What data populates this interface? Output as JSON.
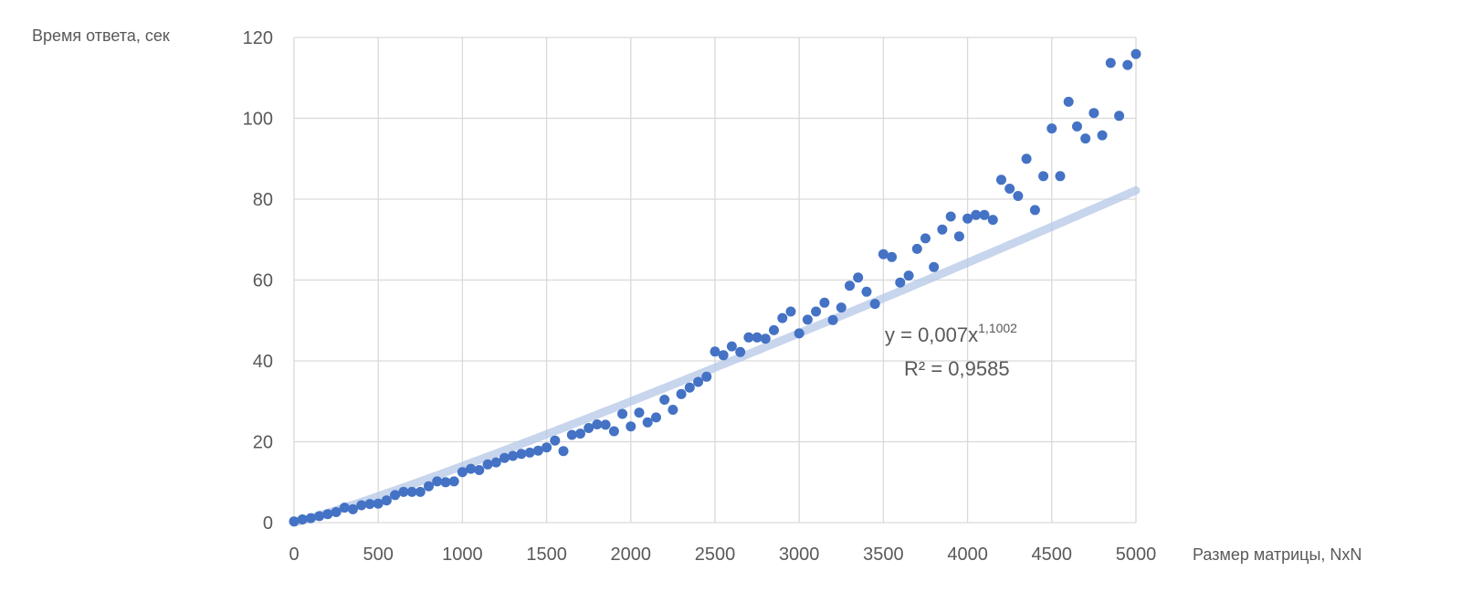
{
  "chart_data": {
    "type": "scatter",
    "ylabel": "Время ответа, сек",
    "xlabel": "Размер матрицы, NxN",
    "xlim": [
      0,
      5000
    ],
    "ylim": [
      0,
      120
    ],
    "x_ticks": [
      "0",
      "500",
      "1000",
      "1500",
      "2000",
      "2500",
      "3000",
      "3500",
      "4000",
      "4500",
      "5000"
    ],
    "y_ticks": [
      "0",
      "20",
      "40",
      "60",
      "80",
      "100",
      "120"
    ],
    "grid": true,
    "marker_color": "#4472C4",
    "trendline_color": "#b4c7e7",
    "trendline": {
      "type": "power",
      "coefficient": 0.007,
      "exponent": 1.1002,
      "equation_main": "y = 0,007x",
      "equation_exp": "1,1002",
      "r_squared_label": "R² = 0,9585"
    },
    "series": [
      {
        "points": [
          [
            0,
            0.3
          ],
          [
            50,
            0.8
          ],
          [
            100,
            1.1
          ],
          [
            150,
            1.6
          ],
          [
            200,
            2.1
          ],
          [
            250,
            2.6
          ],
          [
            300,
            3.7
          ],
          [
            350,
            3.3
          ],
          [
            400,
            4.3
          ],
          [
            450,
            4.6
          ],
          [
            500,
            4.7
          ],
          [
            550,
            5.5
          ],
          [
            600,
            6.8
          ],
          [
            650,
            7.6
          ],
          [
            700,
            7.6
          ],
          [
            750,
            7.6
          ],
          [
            800,
            9.0
          ],
          [
            850,
            10.2
          ],
          [
            900,
            10.0
          ],
          [
            950,
            10.2
          ],
          [
            1000,
            12.5
          ],
          [
            1050,
            13.3
          ],
          [
            1100,
            13.0
          ],
          [
            1150,
            14.4
          ],
          [
            1200,
            14.9
          ],
          [
            1250,
            16.0
          ],
          [
            1300,
            16.5
          ],
          [
            1350,
            17.0
          ],
          [
            1400,
            17.3
          ],
          [
            1450,
            17.8
          ],
          [
            1500,
            18.6
          ],
          [
            1550,
            20.3
          ],
          [
            1600,
            17.7
          ],
          [
            1650,
            21.7
          ],
          [
            1700,
            22.0
          ],
          [
            1750,
            23.4
          ],
          [
            1800,
            24.3
          ],
          [
            1850,
            24.2
          ],
          [
            1900,
            22.6
          ],
          [
            1950,
            26.9
          ],
          [
            2000,
            23.8
          ],
          [
            2050,
            27.2
          ],
          [
            2100,
            24.8
          ],
          [
            2150,
            26.0
          ],
          [
            2200,
            30.4
          ],
          [
            2250,
            27.9
          ],
          [
            2300,
            31.8
          ],
          [
            2350,
            33.4
          ],
          [
            2400,
            34.8
          ],
          [
            2450,
            36.1
          ],
          [
            2500,
            42.3
          ],
          [
            2550,
            41.4
          ],
          [
            2600,
            43.6
          ],
          [
            2650,
            42.2
          ],
          [
            2700,
            45.8
          ],
          [
            2750,
            45.8
          ],
          [
            2800,
            45.5
          ],
          [
            2850,
            47.6
          ],
          [
            2900,
            50.6
          ],
          [
            2950,
            52.2
          ],
          [
            3000,
            46.8
          ],
          [
            3050,
            50.2
          ],
          [
            3100,
            52.2
          ],
          [
            3150,
            54.4
          ],
          [
            3200,
            50.1
          ],
          [
            3250,
            53.2
          ],
          [
            3300,
            58.6
          ],
          [
            3350,
            60.6
          ],
          [
            3400,
            57.1
          ],
          [
            3450,
            54.1
          ],
          [
            3500,
            66.4
          ],
          [
            3550,
            65.7
          ],
          [
            3600,
            59.4
          ],
          [
            3650,
            61.1
          ],
          [
            3700,
            67.7
          ],
          [
            3750,
            70.3
          ],
          [
            3800,
            63.2
          ],
          [
            3850,
            72.5
          ],
          [
            3900,
            75.7
          ],
          [
            3950,
            70.8
          ],
          [
            4000,
            75.2
          ],
          [
            4050,
            76.1
          ],
          [
            4100,
            76.1
          ],
          [
            4150,
            74.9
          ],
          [
            4200,
            84.8
          ],
          [
            4250,
            82.6
          ],
          [
            4300,
            80.8
          ],
          [
            4350,
            90.0
          ],
          [
            4400,
            77.3
          ],
          [
            4450,
            85.7
          ],
          [
            4500,
            97.5
          ],
          [
            4550,
            85.7
          ],
          [
            4600,
            104.1
          ],
          [
            4650,
            98.0
          ],
          [
            4700,
            95.0
          ],
          [
            4750,
            101.3
          ],
          [
            4800,
            95.8
          ],
          [
            4850,
            113.7
          ],
          [
            4900,
            100.6
          ],
          [
            4950,
            113.2
          ],
          [
            5000,
            115.9
          ]
        ]
      }
    ]
  }
}
